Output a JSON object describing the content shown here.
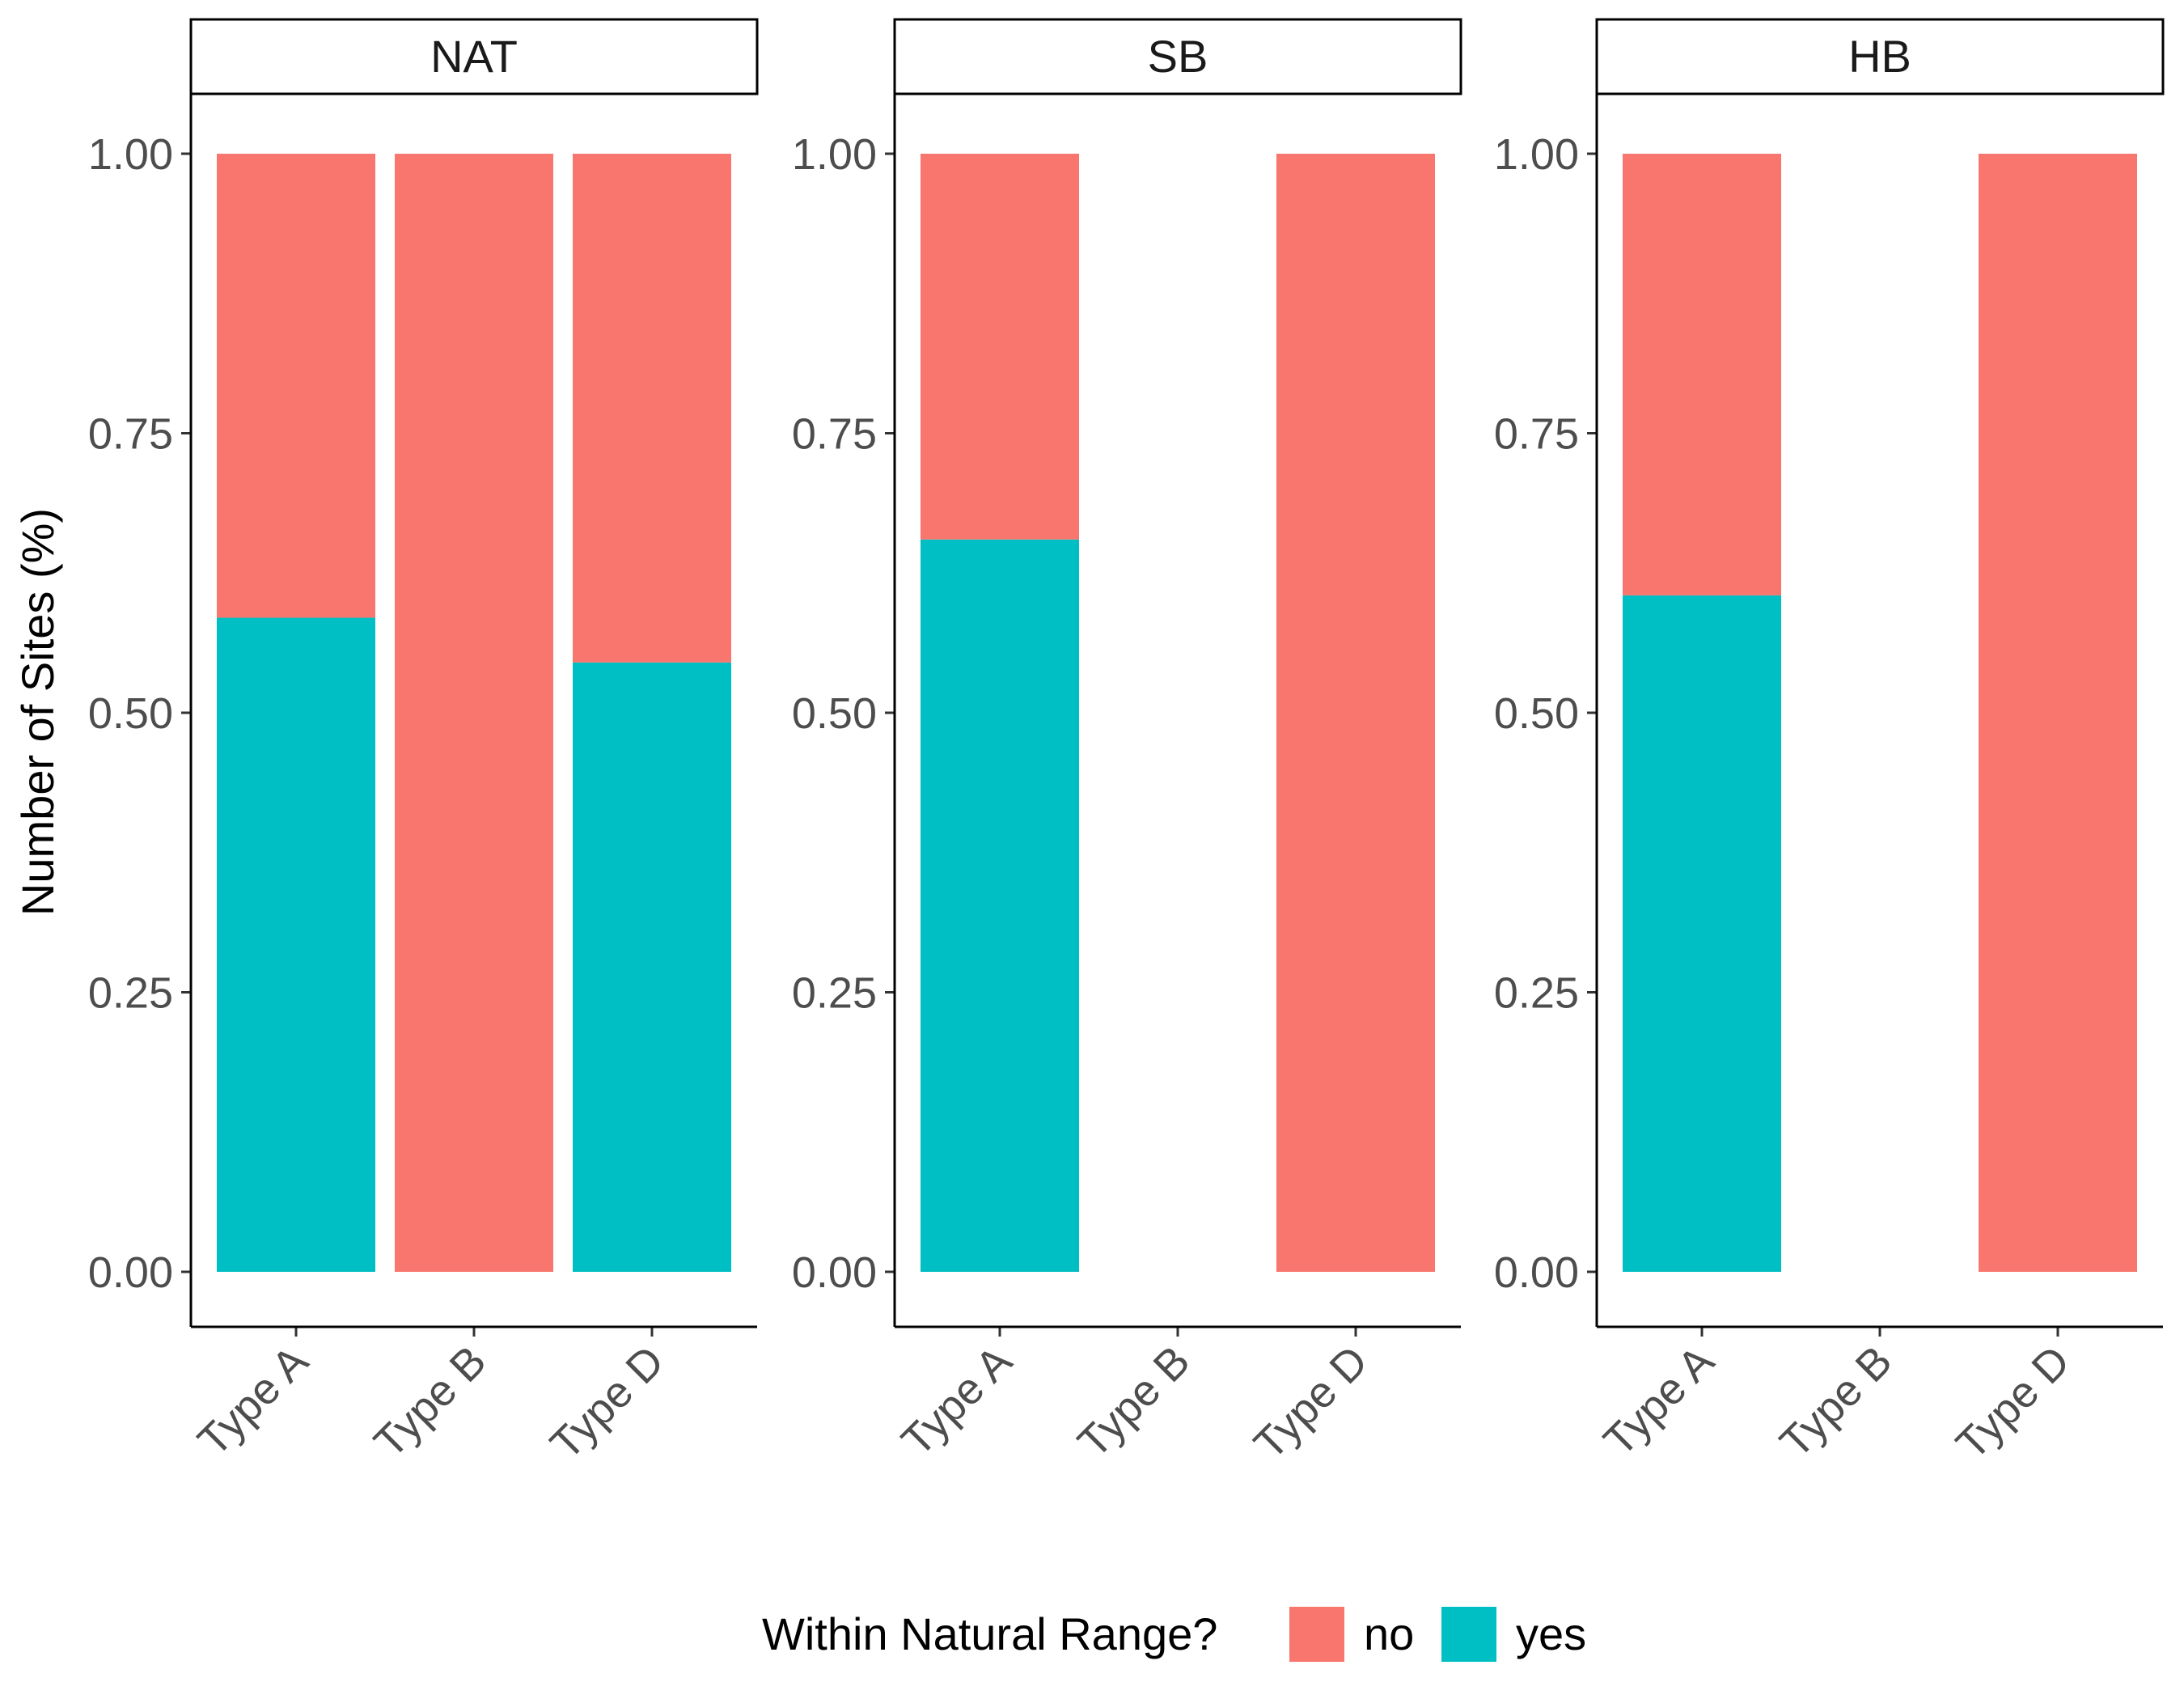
{
  "chart_data": {
    "type": "bar",
    "stacked": true,
    "ylabel": "Number of Sites (%)",
    "xlabel": "",
    "ylim": [
      0,
      1
    ],
    "yticks": [
      "0.00",
      "0.25",
      "0.50",
      "0.75",
      "1.00"
    ],
    "categories": [
      "Type A",
      "Type B",
      "Type D"
    ],
    "grid": false,
    "legend": {
      "title": "Within Natural Range?",
      "position": "bottom",
      "entries": [
        {
          "label": "no",
          "color": "#F8766D"
        },
        {
          "label": "yes",
          "color": "#00BFC4"
        }
      ]
    },
    "panels": [
      {
        "name": "NAT",
        "series": [
          {
            "name": "yes",
            "values": [
              0.585,
              0,
              0.545
            ]
          },
          {
            "name": "no",
            "values": [
              0.415,
              1.0,
              0.455
            ]
          }
        ]
      },
      {
        "name": "SB",
        "series": [
          {
            "name": "yes",
            "values": [
              0.655,
              null,
              0
            ]
          },
          {
            "name": "no",
            "values": [
              0.345,
              null,
              1.0
            ]
          }
        ]
      },
      {
        "name": "HB",
        "series": [
          {
            "name": "yes",
            "values": [
              0.605,
              null,
              0
            ]
          },
          {
            "name": "no",
            "values": [
              0.395,
              null,
              1.0
            ]
          }
        ]
      }
    ]
  }
}
